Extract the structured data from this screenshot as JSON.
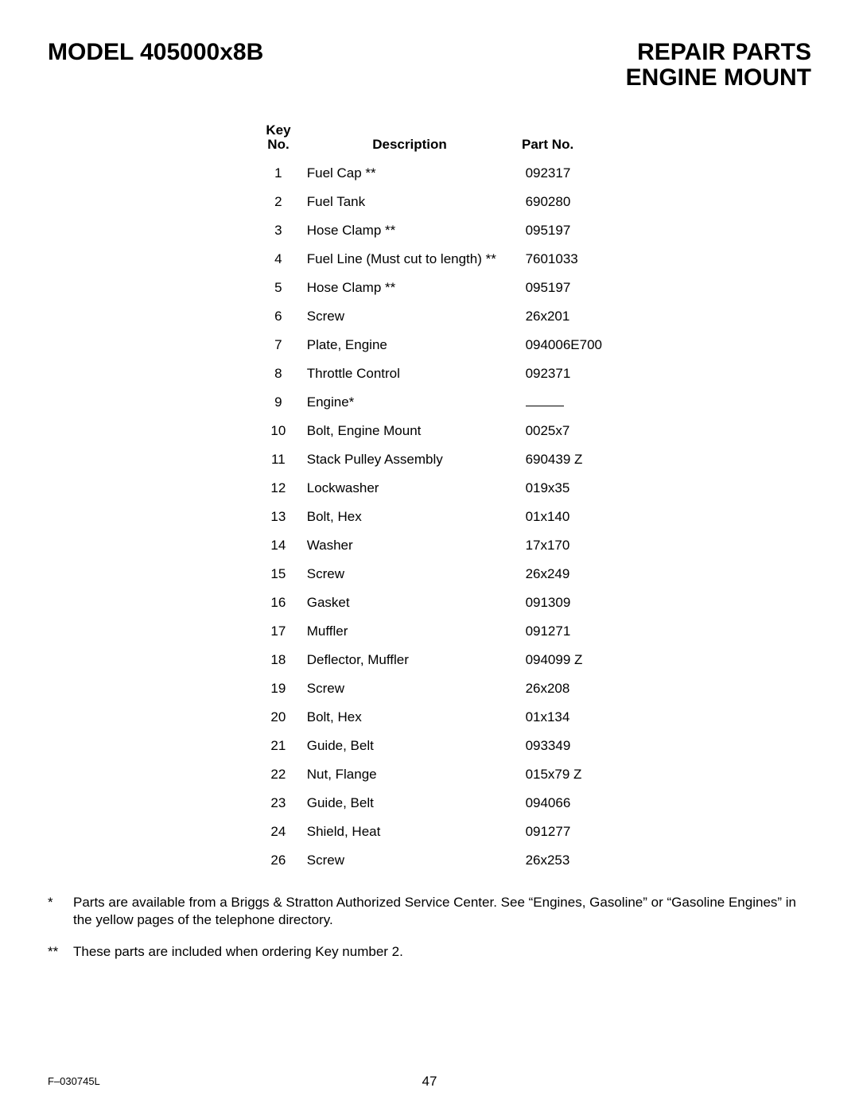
{
  "header": {
    "model": "MODEL 405000x8B",
    "title_line1": "REPAIR PARTS",
    "title_line2": "ENGINE MOUNT"
  },
  "table": {
    "columns": {
      "key_line1": "Key",
      "key_line2": "No.",
      "description": "Description",
      "part": "Part No."
    },
    "rows": [
      {
        "key": "1",
        "desc": "Fuel Cap **",
        "part": "092317"
      },
      {
        "key": "2",
        "desc": "Fuel Tank",
        "part": "690280"
      },
      {
        "key": "3",
        "desc": "Hose Clamp **",
        "part": "095197"
      },
      {
        "key": "4",
        "desc": "Fuel Line (Must cut to length) **",
        "part": "7601033"
      },
      {
        "key": "5",
        "desc": "Hose Clamp **",
        "part": "095197"
      },
      {
        "key": "6",
        "desc": "Screw",
        "part": "26x201"
      },
      {
        "key": "7",
        "desc": "Plate, Engine",
        "part": "094006E700"
      },
      {
        "key": "8",
        "desc": "Throttle Control",
        "part": "092371"
      },
      {
        "key": "9",
        "desc": "Engine*",
        "part": "__DASH__"
      },
      {
        "key": "10",
        "desc": "Bolt, Engine Mount",
        "part": "0025x7"
      },
      {
        "key": "11",
        "desc": "Stack Pulley Assembly",
        "part": "690439  Z"
      },
      {
        "key": "12",
        "desc": "Lockwasher",
        "part": "019x35"
      },
      {
        "key": "13",
        "desc": "Bolt, Hex",
        "part": "01x140"
      },
      {
        "key": "14",
        "desc": "Washer",
        "part": "17x170"
      },
      {
        "key": "15",
        "desc": "Screw",
        "part": "26x249"
      },
      {
        "key": "16",
        "desc": "Gasket",
        "part": "091309"
      },
      {
        "key": "17",
        "desc": "Muffler",
        "part": "091271"
      },
      {
        "key": "18",
        "desc": "Deflector, Muffler",
        "part": "094099  Z"
      },
      {
        "key": "19",
        "desc": "Screw",
        "part": "26x208"
      },
      {
        "key": "20",
        "desc": "Bolt, Hex",
        "part": "01x134"
      },
      {
        "key": "21",
        "desc": "Guide, Belt",
        "part": "093349"
      },
      {
        "key": "22",
        "desc": "Nut, Flange",
        "part": "015x79  Z"
      },
      {
        "key": "23",
        "desc": "Guide, Belt",
        "part": "094066"
      },
      {
        "key": "24",
        "desc": "Shield, Heat",
        "part": "091277"
      },
      {
        "key": "26",
        "desc": "Screw",
        "part": "26x253"
      }
    ]
  },
  "footnotes": [
    {
      "mark": "*",
      "text": "Parts are available from a Briggs & Stratton Authorized Service Center. See “Engines, Gasoline” or “Gasoline Engines” in the yellow pages of the telephone directory."
    },
    {
      "mark": "**",
      "text": "These parts are included when ordering Key number 2."
    }
  ],
  "footer": {
    "doc": "F–030745L",
    "page": "47"
  }
}
